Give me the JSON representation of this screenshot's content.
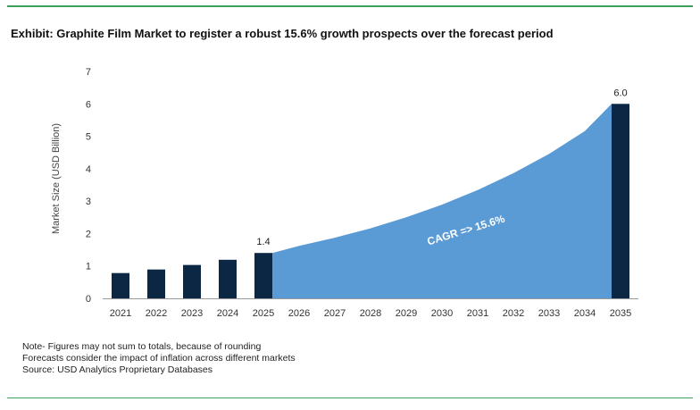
{
  "header": {
    "title": "Exhibit: Graphite Film Market to register a robust 15.6% growth prospects over the forecast period"
  },
  "notes": [
    "Note- Figures may not sum to totals, because of rounding",
    "Forecasts consider the impact of inflation across different markets",
    "Source: USD Analytics Proprietary Databases"
  ],
  "colors": {
    "bar": "#0b2744",
    "area": "#5b9bd5",
    "rule": "#3aa05a",
    "axis": "#999999"
  },
  "chart_data": {
    "type": "bar",
    "ylabel": "Market Size (USD Billion)",
    "ylim": [
      0,
      7
    ],
    "yticks": [
      0,
      1,
      2,
      3,
      4,
      5,
      6,
      7
    ],
    "grid": false,
    "categories": [
      "2021",
      "2022",
      "2023",
      "2024",
      "2025",
      "2026",
      "2027",
      "2028",
      "2029",
      "2030",
      "2031",
      "2032",
      "2033",
      "2034",
      "2035"
    ],
    "bars": [
      {
        "category": "2021",
        "value": 0.78
      },
      {
        "category": "2022",
        "value": 0.89
      },
      {
        "category": "2023",
        "value": 1.03
      },
      {
        "category": "2024",
        "value": 1.19
      },
      {
        "category": "2025",
        "value": 1.4,
        "label": "1.4"
      },
      {
        "category": "2035",
        "value": 6.0,
        "label": "6.0"
      }
    ],
    "area": {
      "categories": [
        "2025",
        "2026",
        "2027",
        "2028",
        "2029",
        "2030",
        "2031",
        "2032",
        "2033",
        "2034",
        "2035"
      ],
      "values": [
        1.4,
        1.62,
        1.87,
        2.16,
        2.5,
        2.89,
        3.34,
        3.86,
        4.46,
        5.16,
        6.0
      ]
    },
    "annotation": "CAGR => 15.6%"
  }
}
